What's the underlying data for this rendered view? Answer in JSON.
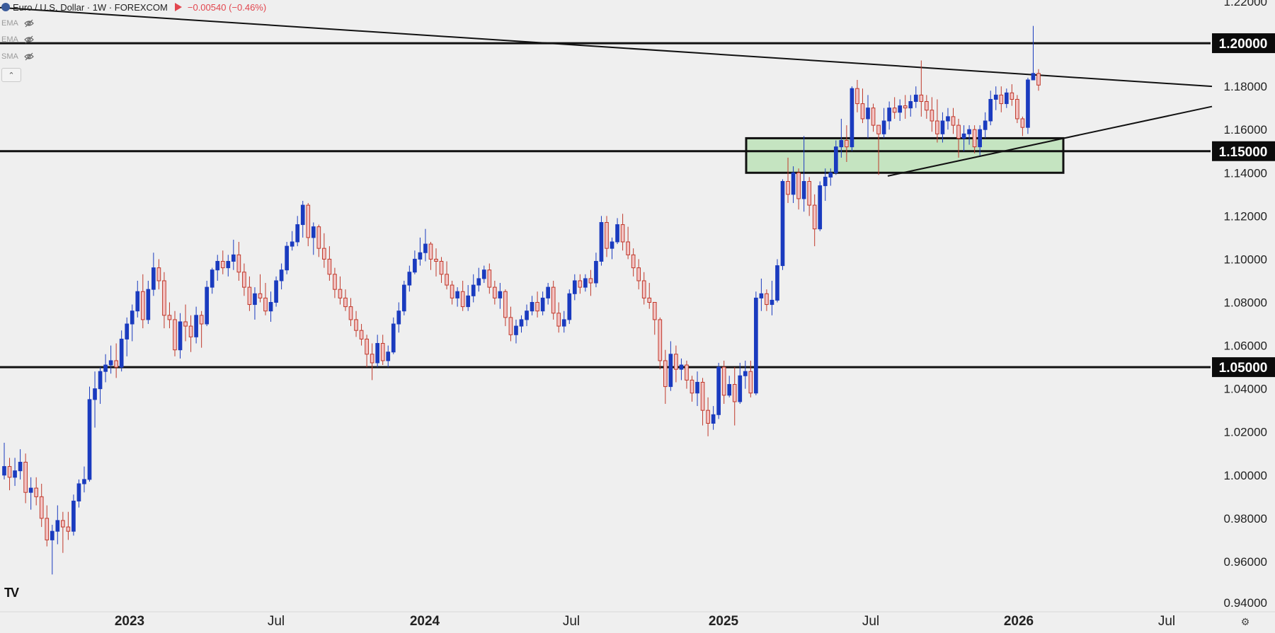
{
  "legend": {
    "symbol_title": "Euro / U.S. Dollar · 1W · FOREXCOM",
    "change_text": "−0.00540 (−0.46%)",
    "change_color": "#e2464e",
    "symbol_icon": "euro-dollar-flag-icon",
    "indicators": [
      {
        "label": "EMA",
        "icon": "eye-hidden-icon"
      },
      {
        "label": "EMA",
        "icon": "eye-hidden-icon"
      },
      {
        "label": "SMA",
        "icon": "eye-hidden-icon"
      }
    ],
    "collapse_icon": "chevron-up-icon"
  },
  "logo_text": "TV",
  "settings_icon": "gear-icon",
  "colors": {
    "up": "#1a3bbf",
    "down_fill": "#f3c4c4",
    "down_stroke": "#c0392b",
    "background": "#efefef",
    "zone_fill": "#c5e4c1",
    "line": "#111111"
  },
  "chart_data": {
    "type": "candlestick",
    "title": "Euro / U.S. Dollar · 1W · FOREXCOM",
    "y_ticks": [
      "1.22000",
      "1.18000",
      "1.16000",
      "1.14000",
      "1.12000",
      "1.10000",
      "1.08000",
      "1.06000",
      "1.04000",
      "1.02000",
      "1.00000",
      "0.98000",
      "0.96000",
      "0.94000"
    ],
    "highlighted_levels": [
      "1.20000",
      "1.15000",
      "1.05000"
    ],
    "x_ticks": [
      "2023",
      "Jul",
      "2024",
      "Jul",
      "2025",
      "Jul",
      "2026",
      "Jul"
    ],
    "ylim": [
      0.94,
      1.22
    ],
    "zone": {
      "low": 1.14,
      "high": 1.156
    },
    "last_change": "-0.00540",
    "candles": [
      [
        1.0,
        1.015,
        0.998,
        1.004
      ],
      [
        1.004,
        1.008,
        0.993,
        0.999
      ],
      [
        0.999,
        1.008,
        0.995,
        1.002
      ],
      [
        1.002,
        1.012,
        0.998,
        1.006
      ],
      [
        1.006,
        1.01,
        0.987,
        0.992
      ],
      [
        0.992,
        0.999,
        0.984,
        0.994
      ],
      [
        0.994,
        0.999,
        0.986,
        0.99
      ],
      [
        0.99,
        0.996,
        0.976,
        0.98
      ],
      [
        0.98,
        0.986,
        0.967,
        0.97
      ],
      [
        0.97,
        0.977,
        0.954,
        0.974
      ],
      [
        0.974,
        0.986,
        0.968,
        0.979
      ],
      [
        0.979,
        0.983,
        0.964,
        0.976
      ],
      [
        0.976,
        0.983,
        0.97,
        0.974
      ],
      [
        0.974,
        0.991,
        0.972,
        0.988
      ],
      [
        0.988,
        0.998,
        0.985,
        0.996
      ],
      [
        0.996,
        1.004,
        0.992,
        0.998
      ],
      [
        0.998,
        1.041,
        0.997,
        1.035
      ],
      [
        1.035,
        1.048,
        1.022,
        1.04
      ],
      [
        1.04,
        1.05,
        1.033,
        1.048
      ],
      [
        1.048,
        1.056,
        1.043,
        1.051
      ],
      [
        1.051,
        1.06,
        1.047,
        1.053
      ],
      [
        1.053,
        1.061,
        1.045,
        1.05
      ],
      [
        1.05,
        1.067,
        1.048,
        1.063
      ],
      [
        1.063,
        1.073,
        1.055,
        1.07
      ],
      [
        1.07,
        1.079,
        1.062,
        1.076
      ],
      [
        1.076,
        1.09,
        1.073,
        1.085
      ],
      [
        1.085,
        1.093,
        1.068,
        1.072
      ],
      [
        1.072,
        1.09,
        1.07,
        1.086
      ],
      [
        1.086,
        1.103,
        1.083,
        1.096
      ],
      [
        1.096,
        1.1,
        1.086,
        1.09
      ],
      [
        1.09,
        1.094,
        1.068,
        1.074
      ],
      [
        1.074,
        1.08,
        1.068,
        1.072
      ],
      [
        1.072,
        1.076,
        1.055,
        1.058
      ],
      [
        1.058,
        1.075,
        1.054,
        1.071
      ],
      [
        1.071,
        1.079,
        1.062,
        1.069
      ],
      [
        1.069,
        1.074,
        1.057,
        1.064
      ],
      [
        1.064,
        1.078,
        1.061,
        1.074
      ],
      [
        1.074,
        1.076,
        1.059,
        1.07
      ],
      [
        1.07,
        1.09,
        1.069,
        1.087
      ],
      [
        1.087,
        1.096,
        1.084,
        1.095
      ],
      [
        1.095,
        1.102,
        1.09,
        1.099
      ],
      [
        1.099,
        1.104,
        1.093,
        1.096
      ],
      [
        1.096,
        1.102,
        1.092,
        1.099
      ],
      [
        1.099,
        1.109,
        1.095,
        1.102
      ],
      [
        1.102,
        1.108,
        1.09,
        1.094
      ],
      [
        1.094,
        1.098,
        1.083,
        1.087
      ],
      [
        1.087,
        1.092,
        1.076,
        1.079
      ],
      [
        1.079,
        1.087,
        1.072,
        1.084
      ],
      [
        1.084,
        1.093,
        1.08,
        1.082
      ],
      [
        1.082,
        1.089,
        1.074,
        1.076
      ],
      [
        1.076,
        1.085,
        1.071,
        1.08
      ],
      [
        1.08,
        1.092,
        1.078,
        1.09
      ],
      [
        1.09,
        1.098,
        1.086,
        1.095
      ],
      [
        1.095,
        1.108,
        1.093,
        1.106
      ],
      [
        1.106,
        1.113,
        1.104,
        1.108
      ],
      [
        1.108,
        1.12,
        1.106,
        1.116
      ],
      [
        1.116,
        1.127,
        1.11,
        1.125
      ],
      [
        1.125,
        1.126,
        1.106,
        1.11
      ],
      [
        1.11,
        1.117,
        1.102,
        1.115
      ],
      [
        1.115,
        1.116,
        1.101,
        1.105
      ],
      [
        1.105,
        1.112,
        1.096,
        1.1
      ],
      [
        1.1,
        1.106,
        1.09,
        1.093
      ],
      [
        1.093,
        1.096,
        1.082,
        1.086
      ],
      [
        1.086,
        1.092,
        1.079,
        1.082
      ],
      [
        1.082,
        1.086,
        1.076,
        1.078
      ],
      [
        1.078,
        1.082,
        1.069,
        1.072
      ],
      [
        1.072,
        1.076,
        1.064,
        1.067
      ],
      [
        1.067,
        1.07,
        1.06,
        1.063
      ],
      [
        1.063,
        1.065,
        1.05,
        1.056
      ],
      [
        1.056,
        1.061,
        1.044,
        1.052
      ],
      [
        1.052,
        1.065,
        1.05,
        1.061
      ],
      [
        1.061,
        1.065,
        1.051,
        1.053
      ],
      [
        1.053,
        1.06,
        1.05,
        1.057
      ],
      [
        1.057,
        1.073,
        1.056,
        1.07
      ],
      [
        1.07,
        1.08,
        1.066,
        1.076
      ],
      [
        1.076,
        1.09,
        1.074,
        1.088
      ],
      [
        1.088,
        1.097,
        1.085,
        1.094
      ],
      [
        1.094,
        1.104,
        1.093,
        1.1
      ],
      [
        1.1,
        1.11,
        1.097,
        1.103
      ],
      [
        1.103,
        1.114,
        1.099,
        1.107
      ],
      [
        1.107,
        1.108,
        1.095,
        1.1
      ],
      [
        1.1,
        1.105,
        1.092,
        1.099
      ],
      [
        1.099,
        1.101,
        1.089,
        1.093
      ],
      [
        1.093,
        1.099,
        1.086,
        1.088
      ],
      [
        1.088,
        1.09,
        1.079,
        1.082
      ],
      [
        1.082,
        1.087,
        1.078,
        1.085
      ],
      [
        1.085,
        1.09,
        1.076,
        1.078
      ],
      [
        1.078,
        1.088,
        1.076,
        1.083
      ],
      [
        1.083,
        1.093,
        1.08,
        1.088
      ],
      [
        1.088,
        1.096,
        1.085,
        1.091
      ],
      [
        1.091,
        1.097,
        1.089,
        1.095
      ],
      [
        1.095,
        1.098,
        1.084,
        1.087
      ],
      [
        1.087,
        1.09,
        1.079,
        1.082
      ],
      [
        1.082,
        1.089,
        1.077,
        1.085
      ],
      [
        1.085,
        1.086,
        1.069,
        1.073
      ],
      [
        1.073,
        1.078,
        1.062,
        1.065
      ],
      [
        1.065,
        1.072,
        1.061,
        1.069
      ],
      [
        1.069,
        1.074,
        1.066,
        1.072
      ],
      [
        1.072,
        1.079,
        1.069,
        1.076
      ],
      [
        1.076,
        1.083,
        1.074,
        1.08
      ],
      [
        1.08,
        1.085,
        1.073,
        1.076
      ],
      [
        1.076,
        1.085,
        1.074,
        1.082
      ],
      [
        1.082,
        1.089,
        1.079,
        1.087
      ],
      [
        1.087,
        1.09,
        1.072,
        1.075
      ],
      [
        1.075,
        1.08,
        1.066,
        1.069
      ],
      [
        1.069,
        1.076,
        1.066,
        1.072
      ],
      [
        1.072,
        1.086,
        1.07,
        1.084
      ],
      [
        1.084,
        1.093,
        1.081,
        1.09
      ],
      [
        1.09,
        1.093,
        1.084,
        1.087
      ],
      [
        1.087,
        1.093,
        1.085,
        1.091
      ],
      [
        1.091,
        1.095,
        1.083,
        1.089
      ],
      [
        1.089,
        1.103,
        1.087,
        1.099
      ],
      [
        1.099,
        1.12,
        1.097,
        1.117
      ],
      [
        1.117,
        1.12,
        1.101,
        1.105
      ],
      [
        1.105,
        1.11,
        1.1,
        1.108
      ],
      [
        1.108,
        1.119,
        1.107,
        1.116
      ],
      [
        1.116,
        1.121,
        1.104,
        1.108
      ],
      [
        1.108,
        1.115,
        1.1,
        1.102
      ],
      [
        1.102,
        1.105,
        1.092,
        1.096
      ],
      [
        1.096,
        1.1,
        1.086,
        1.09
      ],
      [
        1.09,
        1.094,
        1.079,
        1.082
      ],
      [
        1.082,
        1.089,
        1.077,
        1.08
      ],
      [
        1.08,
        1.08,
        1.065,
        1.072
      ],
      [
        1.072,
        1.073,
        1.049,
        1.053
      ],
      [
        1.053,
        1.058,
        1.033,
        1.041
      ],
      [
        1.041,
        1.062,
        1.039,
        1.056
      ],
      [
        1.056,
        1.06,
        1.043,
        1.049
      ],
      [
        1.049,
        1.054,
        1.044,
        1.051
      ],
      [
        1.051,
        1.053,
        1.04,
        1.044
      ],
      [
        1.044,
        1.046,
        1.034,
        1.038
      ],
      [
        1.038,
        1.048,
        1.032,
        1.043
      ],
      [
        1.043,
        1.045,
        1.023,
        1.03
      ],
      [
        1.03,
        1.036,
        1.018,
        1.024
      ],
      [
        1.024,
        1.032,
        1.021,
        1.028
      ],
      [
        1.028,
        1.052,
        1.026,
        1.05
      ],
      [
        1.05,
        1.053,
        1.033,
        1.037
      ],
      [
        1.037,
        1.046,
        1.036,
        1.042
      ],
      [
        1.042,
        1.05,
        1.023,
        1.034
      ],
      [
        1.034,
        1.052,
        1.033,
        1.046
      ],
      [
        1.046,
        1.053,
        1.04,
        1.048
      ],
      [
        1.048,
        1.053,
        1.036,
        1.038
      ],
      [
        1.038,
        1.085,
        1.037,
        1.082
      ],
      [
        1.082,
        1.091,
        1.076,
        1.084
      ],
      [
        1.084,
        1.086,
        1.076,
        1.079
      ],
      [
        1.079,
        1.09,
        1.074,
        1.081
      ],
      [
        1.081,
        1.1,
        1.08,
        1.097
      ],
      [
        1.097,
        1.137,
        1.095,
        1.136
      ],
      [
        1.136,
        1.147,
        1.126,
        1.13
      ],
      [
        1.13,
        1.143,
        1.126,
        1.14
      ],
      [
        1.14,
        1.142,
        1.123,
        1.128
      ],
      [
        1.128,
        1.157,
        1.122,
        1.136
      ],
      [
        1.136,
        1.138,
        1.12,
        1.125
      ],
      [
        1.125,
        1.13,
        1.106,
        1.114
      ],
      [
        1.114,
        1.136,
        1.113,
        1.134
      ],
      [
        1.134,
        1.142,
        1.127,
        1.138
      ],
      [
        1.138,
        1.142,
        1.134,
        1.14
      ],
      [
        1.14,
        1.155,
        1.139,
        1.152
      ],
      [
        1.152,
        1.165,
        1.147,
        1.155
      ],
      [
        1.155,
        1.162,
        1.145,
        1.152
      ],
      [
        1.152,
        1.18,
        1.15,
        1.179
      ],
      [
        1.179,
        1.183,
        1.168,
        1.172
      ],
      [
        1.172,
        1.179,
        1.163,
        1.165
      ],
      [
        1.165,
        1.176,
        1.156,
        1.17
      ],
      [
        1.17,
        1.172,
        1.159,
        1.162
      ],
      [
        1.162,
        1.162,
        1.139,
        1.158
      ],
      [
        1.158,
        1.17,
        1.156,
        1.164
      ],
      [
        1.164,
        1.173,
        1.16,
        1.17
      ],
      [
        1.17,
        1.175,
        1.165,
        1.168
      ],
      [
        1.168,
        1.174,
        1.164,
        1.171
      ],
      [
        1.171,
        1.176,
        1.165,
        1.17
      ],
      [
        1.17,
        1.176,
        1.166,
        1.173
      ],
      [
        1.173,
        1.18,
        1.17,
        1.176
      ],
      [
        1.176,
        1.192,
        1.166,
        1.173
      ],
      [
        1.173,
        1.176,
        1.165,
        1.169
      ],
      [
        1.169,
        1.175,
        1.159,
        1.164
      ],
      [
        1.164,
        1.174,
        1.154,
        1.158
      ],
      [
        1.158,
        1.168,
        1.154,
        1.164
      ],
      [
        1.164,
        1.17,
        1.16,
        1.166
      ],
      [
        1.166,
        1.17,
        1.158,
        1.162
      ],
      [
        1.162,
        1.165,
        1.147,
        1.156
      ],
      [
        1.156,
        1.162,
        1.15,
        1.158
      ],
      [
        1.158,
        1.162,
        1.153,
        1.16
      ],
      [
        1.16,
        1.162,
        1.149,
        1.152
      ],
      [
        1.152,
        1.162,
        1.148,
        1.16
      ],
      [
        1.16,
        1.168,
        1.156,
        1.164
      ],
      [
        1.164,
        1.178,
        1.162,
        1.174
      ],
      [
        1.174,
        1.18,
        1.169,
        1.176
      ],
      [
        1.176,
        1.18,
        1.168,
        1.172
      ],
      [
        1.172,
        1.179,
        1.17,
        1.177
      ],
      [
        1.177,
        1.181,
        1.171,
        1.174
      ],
      [
        1.174,
        1.176,
        1.163,
        1.165
      ],
      [
        1.165,
        1.166,
        1.157,
        1.161
      ],
      [
        1.161,
        1.184,
        1.158,
        1.183
      ],
      [
        1.183,
        1.208,
        1.183,
        1.186
      ],
      [
        1.186,
        1.188,
        1.178,
        1.1806
      ]
    ]
  }
}
